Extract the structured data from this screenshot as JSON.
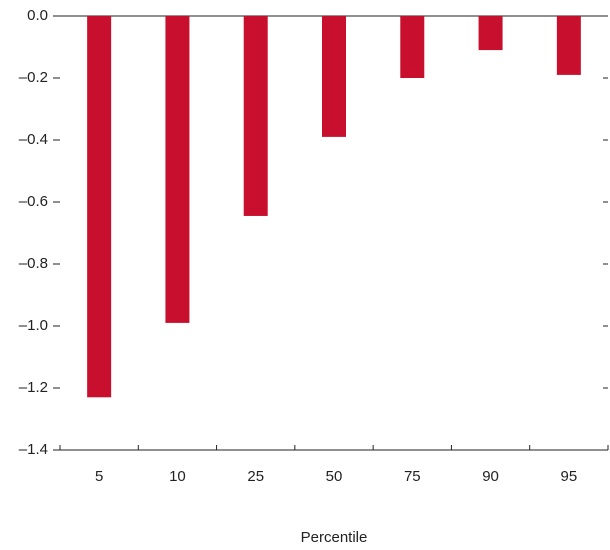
{
  "chart_data": {
    "type": "bar",
    "x_label": "Percentile",
    "categories": [
      "5",
      "10",
      "25",
      "50",
      "75",
      "90",
      "95"
    ],
    "values": [
      -1.23,
      -0.99,
      -0.645,
      -0.39,
      -0.2,
      -0.11,
      -0.19
    ],
    "color": "#c8102e",
    "ylim": [
      -1.4,
      0
    ],
    "yticks": [
      {
        "value": 0,
        "label": "0.0"
      },
      {
        "value": -0.2,
        "label": "–0.2"
      },
      {
        "value": -0.4,
        "label": "–0.4"
      },
      {
        "value": -0.6,
        "label": "–0.6"
      },
      {
        "value": -0.8,
        "label": "–0.8"
      },
      {
        "value": -1.0,
        "label": "–1.0"
      },
      {
        "value": -1.2,
        "label": "–1.2"
      },
      {
        "value": -1.4,
        "label": "–1.4"
      }
    ]
  }
}
